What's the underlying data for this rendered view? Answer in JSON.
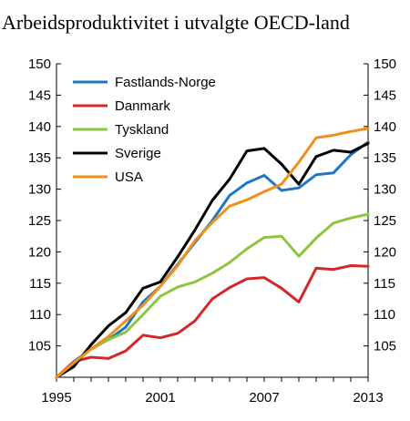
{
  "chart_data": {
    "type": "line",
    "title": "Arbeidsproduktivitet i utvalgte OECD-land",
    "xlabel": "",
    "ylabel": "",
    "xlim": [
      1995,
      2013
    ],
    "ylim": [
      100,
      150
    ],
    "y_ticks": [
      105,
      110,
      115,
      120,
      125,
      130,
      135,
      140,
      145,
      150
    ],
    "x_ticks": [
      1995,
      2001,
      2007,
      2013
    ],
    "grid": false,
    "legend_position": "top-left",
    "x": [
      1995,
      1996,
      1997,
      1998,
      1999,
      2000,
      2001,
      2002,
      2003,
      2004,
      2005,
      2006,
      2007,
      2008,
      2009,
      2010,
      2011,
      2012,
      2013
    ],
    "series": [
      {
        "name": "Fastlands-Norge",
        "color": "#1f77c4",
        "values": [
          100,
          102.5,
          104.5,
          106,
          108,
          112,
          114.5,
          118,
          121.5,
          125,
          129,
          131,
          132.2,
          129.8,
          130.2,
          132.3,
          132.6,
          135.5,
          137.5
        ]
      },
      {
        "name": "Danmark",
        "color": "#d62728",
        "values": [
          100,
          102.5,
          103.2,
          103,
          104.2,
          106.7,
          106.3,
          107,
          109,
          112.5,
          114.3,
          115.7,
          115.9,
          114.2,
          112,
          117.4,
          117.2,
          117.8,
          117.7
        ]
      },
      {
        "name": "Tyskland",
        "color": "#8cc63f",
        "values": [
          100,
          102.3,
          104.5,
          106,
          107.2,
          110,
          112.9,
          114.4,
          115.2,
          116.6,
          118.3,
          120.5,
          122.3,
          122.5,
          119.3,
          122.2,
          124.6,
          125.4,
          126
        ]
      },
      {
        "name": "Sverige",
        "color": "#000000",
        "values": [
          100,
          101.7,
          105.2,
          108.2,
          110.3,
          114.2,
          115.2,
          119.2,
          123.5,
          128.2,
          131.6,
          136.1,
          136.5,
          134,
          130.8,
          135.2,
          136.2,
          135.9,
          137.3
        ]
      },
      {
        "name": "USA",
        "color": "#f28e1c",
        "values": [
          100,
          102.3,
          104.5,
          106.5,
          109,
          111.5,
          114.5,
          117.8,
          121.8,
          124.7,
          127.3,
          128.3,
          129.6,
          130.8,
          134.3,
          138.2,
          138.6,
          139.2,
          139.7
        ]
      }
    ]
  }
}
